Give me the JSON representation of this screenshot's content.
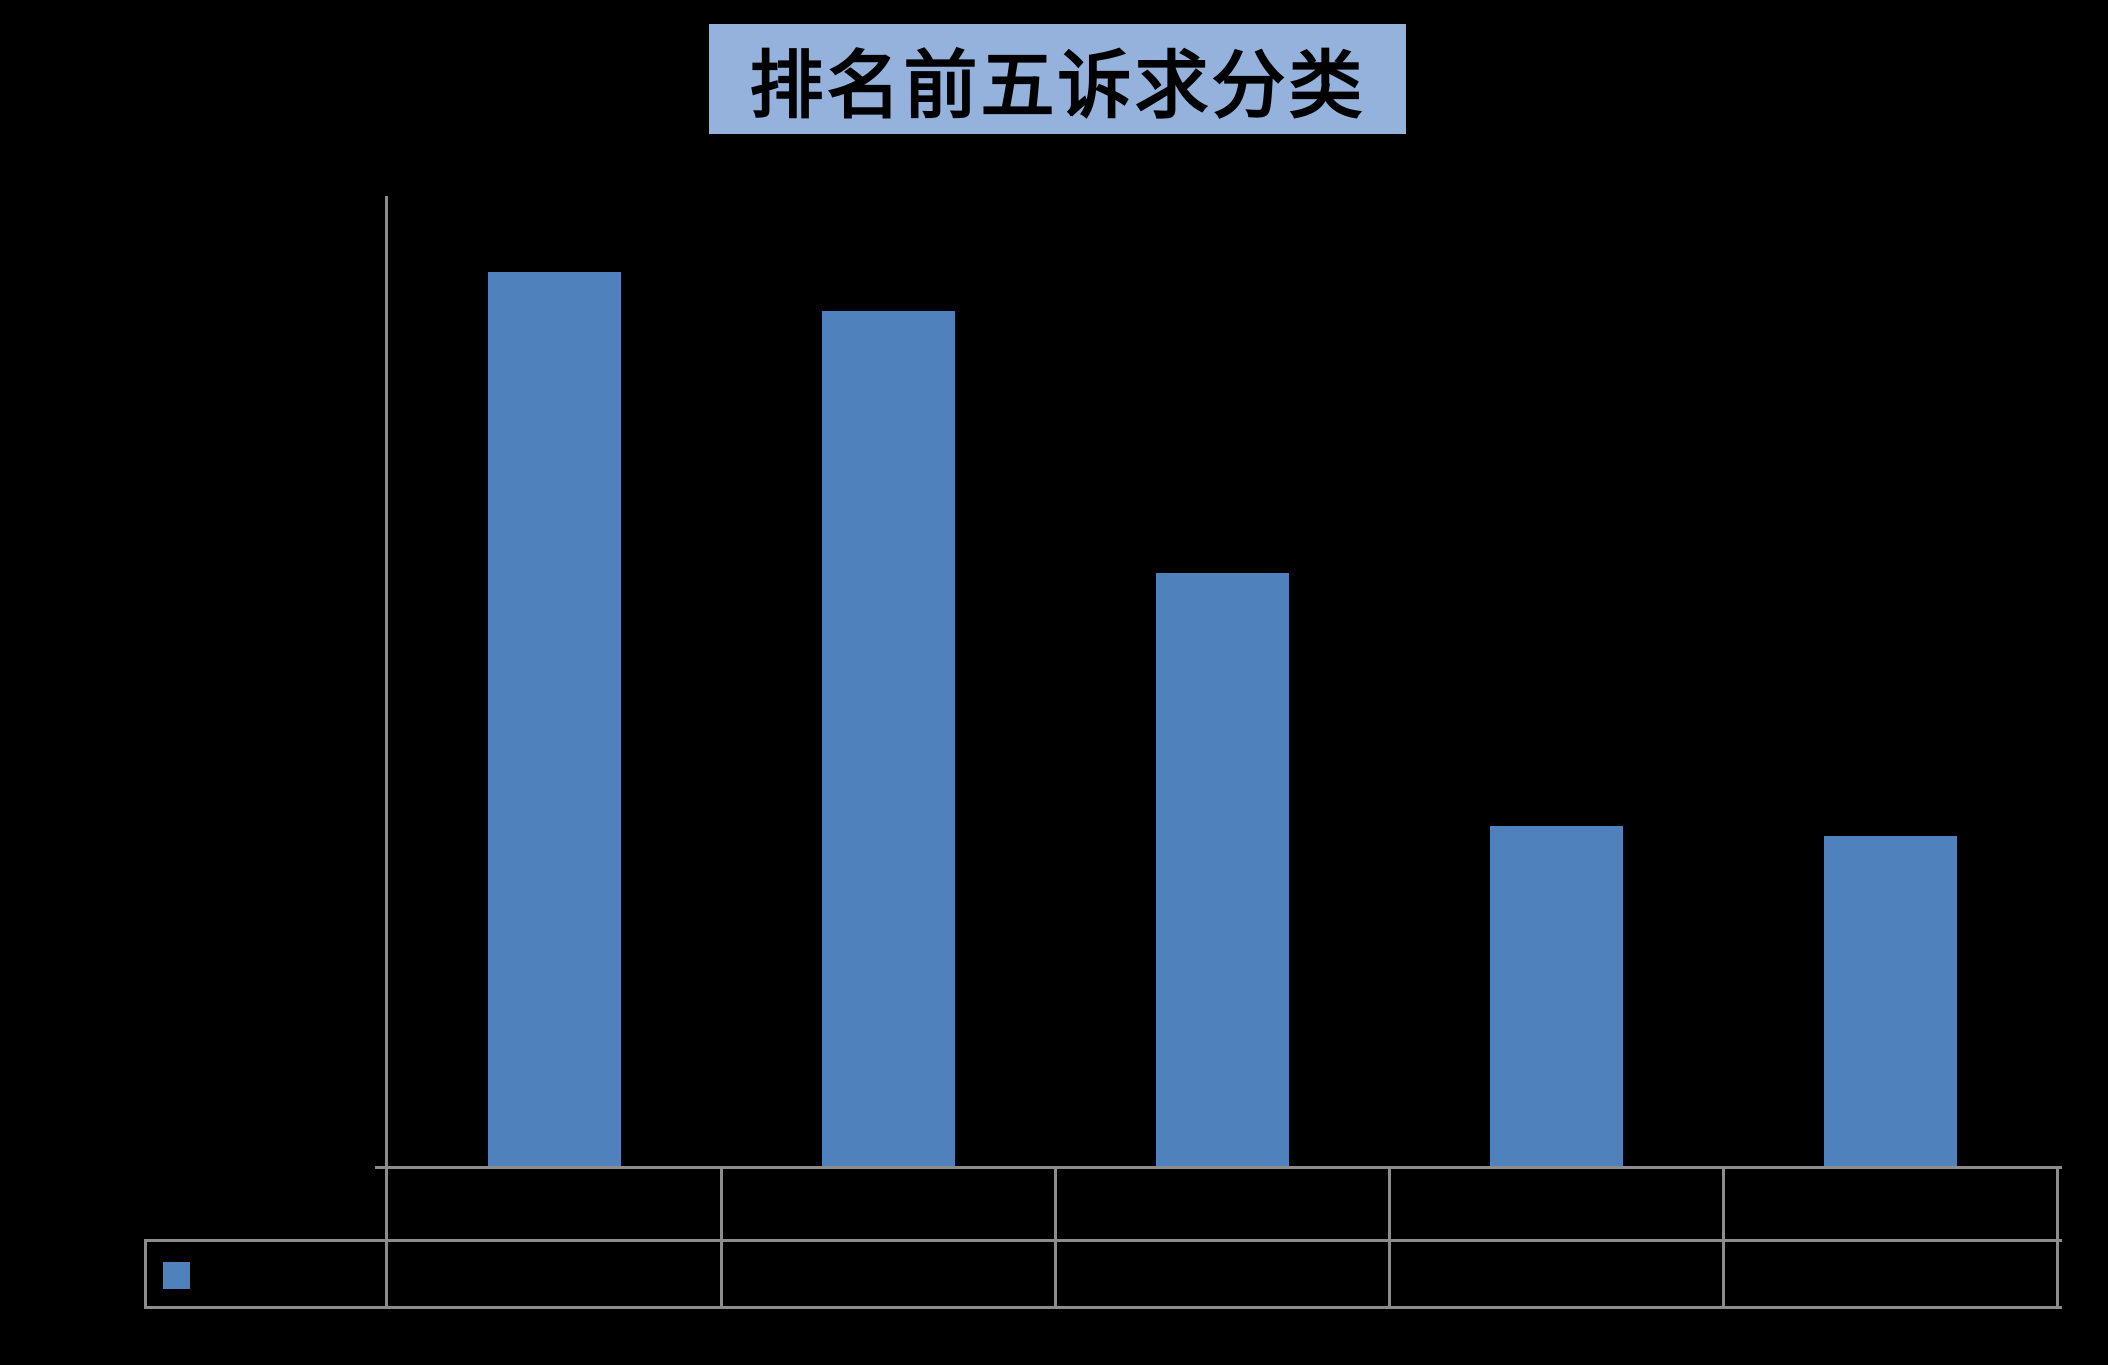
{
  "app": {
    "background_color": "#000000"
  },
  "title": {
    "text": "排名前五诉求分类",
    "background_color": "#94B2DC",
    "text_color": "#000000"
  },
  "axis": {
    "line_color": "#8C8C8C",
    "tick_labels_visible": false
  },
  "legend": {
    "swatch_color": "#4F81BD",
    "label": ""
  },
  "table": {
    "border_color": "#8C8C8C",
    "category_row": [
      "",
      "",
      "",
      "",
      ""
    ],
    "value_row": [
      "",
      "",
      "",
      "",
      ""
    ],
    "legend_cell_label": ""
  },
  "chart_data": {
    "type": "bar",
    "title": "排名前五诉求分类",
    "categories": [
      "",
      "",
      "",
      "",
      ""
    ],
    "series": [
      {
        "name": "",
        "values": [
          92,
          88,
          61,
          35,
          34
        ]
      }
    ],
    "bar_color": "#4F81BD",
    "xlabel": "",
    "ylabel": "",
    "ylim": [
      0,
      100
    ],
    "grid": false,
    "legend_position": "bottom-left",
    "data_table_shown": true,
    "values_estimated": true
  }
}
